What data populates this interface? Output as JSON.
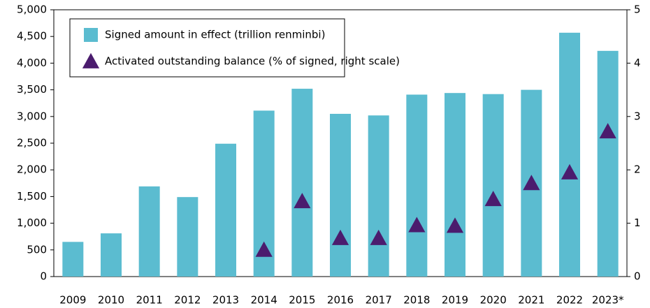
{
  "chart_data": {
    "type": "bar",
    "categories": [
      "2009",
      "2010",
      "2011",
      "2012",
      "2013",
      "2014",
      "2015",
      "2016",
      "2017",
      "2018",
      "2019",
      "2020",
      "2021",
      "2022",
      "2023*"
    ],
    "series": [
      {
        "name": "Signed amount in effect (trillion renminbi)",
        "color": "#5bbcd0",
        "marker": "square",
        "values": [
          650,
          810,
          1690,
          1490,
          2490,
          3110,
          3520,
          3050,
          3020,
          3410,
          3440,
          3420,
          3500,
          4570,
          4230
        ]
      },
      {
        "name": "Activated outstanding balance (% of signed, right scale)",
        "color": "#4b1c6e",
        "marker": "triangle",
        "axis": "y2",
        "values": [
          null,
          null,
          null,
          null,
          null,
          0.5,
          1.41,
          0.72,
          0.72,
          0.96,
          0.95,
          1.45,
          1.75,
          1.95,
          2.72
        ]
      }
    ],
    "ylim": [
      0,
      5000
    ],
    "yticks": [
      0,
      500,
      {
        "value": 1000,
        "label": "1,000"
      },
      {
        "value": 1500,
        "label": "1,500"
      },
      {
        "value": 2000,
        "label": "2,000"
      },
      {
        "value": 2500,
        "label": "2,500"
      },
      {
        "value": 3000,
        "label": "3,000"
      },
      {
        "value": 3500,
        "label": "3,500"
      },
      {
        "value": 4000,
        "label": "4,000"
      },
      {
        "value": 4500,
        "label": "4,500"
      },
      {
        "value": 5000,
        "label": "5,000"
      }
    ],
    "y2lim": [
      0,
      5
    ],
    "y2ticks": [
      0,
      1,
      2,
      3,
      4,
      5
    ],
    "grid": false,
    "legend": "top-left"
  }
}
